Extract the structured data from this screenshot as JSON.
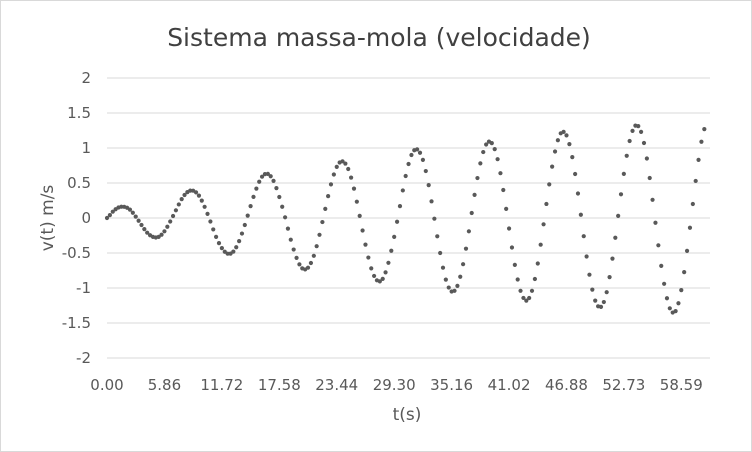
{
  "chart_data": {
    "type": "scatter",
    "title": "Sistema massa-mola (velocidade)",
    "xlabel": "t(s)",
    "ylabel": "v(t)  m/s",
    "ylim": [
      -2,
      2
    ],
    "xlim": [
      0,
      61.52
    ],
    "yticks": [
      "2",
      "1.5",
      "1",
      "0.5",
      "0",
      "-0.5",
      "-1",
      "-1.5",
      "-2"
    ],
    "xticks": [
      "0.00",
      "5.86",
      "11.72",
      "17.58",
      "23.44",
      "29.30",
      "35.16",
      "41.02",
      "46.88",
      "52.73",
      "58.59"
    ],
    "grid": true,
    "legend": "none",
    "marker_color": "#595959",
    "x": [
      0.0,
      0.59,
      1.17,
      1.76,
      2.34,
      2.93,
      3.52,
      4.1,
      4.69,
      5.27,
      5.86,
      6.45,
      7.03,
      7.62,
      8.2,
      8.79,
      9.38,
      9.96,
      10.55,
      11.13,
      11.72,
      12.31,
      12.89,
      13.48,
      14.06,
      14.65,
      15.24,
      15.82,
      16.41,
      16.99,
      17.58,
      18.17,
      18.75,
      19.34,
      19.92,
      20.51,
      21.1,
      21.68,
      22.27,
      22.85,
      23.44,
      24.03,
      24.61,
      25.2,
      25.78,
      26.37,
      26.96,
      27.54,
      28.13,
      28.71,
      29.3,
      29.89,
      30.47,
      31.06,
      31.64,
      32.23,
      32.82,
      33.4,
      33.99,
      34.57,
      35.16,
      35.75,
      36.33,
      36.92,
      37.5,
      38.09,
      38.68,
      39.26,
      39.85,
      40.43,
      41.02,
      41.61,
      42.19,
      42.78,
      43.36,
      43.95,
      44.54,
      45.12,
      45.71,
      46.29,
      46.88,
      47.47,
      48.05,
      48.64,
      49.22,
      49.81,
      50.4,
      50.98,
      51.57,
      52.15,
      52.73,
      53.32,
      53.91,
      54.49,
      55.08,
      55.66,
      56.25,
      56.84,
      57.42,
      58.01,
      58.59,
      59.18,
      59.77,
      60.35,
      60.94
    ],
    "y": [
      0.0,
      0.09,
      0.15,
      0.16,
      0.12,
      0.02,
      -0.1,
      -0.21,
      -0.27,
      -0.27,
      -0.19,
      -0.05,
      0.11,
      0.27,
      0.37,
      0.39,
      0.32,
      0.16,
      -0.05,
      -0.27,
      -0.43,
      -0.51,
      -0.48,
      -0.33,
      -0.1,
      0.17,
      0.42,
      0.59,
      0.63,
      0.53,
      0.3,
      0.01,
      -0.31,
      -0.57,
      -0.72,
      -0.71,
      -0.54,
      -0.24,
      0.13,
      0.48,
      0.73,
      0.81,
      0.7,
      0.42,
      0.03,
      -0.38,
      -0.72,
      -0.89,
      -0.87,
      -0.64,
      -0.27,
      0.17,
      0.6,
      0.9,
      0.98,
      0.83,
      0.47,
      -0.01,
      -0.5,
      -0.88,
      -1.05,
      -0.97,
      -0.66,
      -0.19,
      0.33,
      0.78,
      1.05,
      1.07,
      0.84,
      0.4,
      -0.15,
      -0.67,
      -1.04,
      -1.18,
      -1.04,
      -0.65,
      -0.09,
      0.48,
      0.95,
      1.21,
      1.18,
      0.87,
      0.35,
      -0.26,
      -0.81,
      -1.18,
      -1.27,
      -1.06,
      -0.58,
      0.03,
      0.63,
      1.1,
      1.32,
      1.23,
      0.85,
      0.26,
      -0.39,
      -0.94,
      -1.29,
      -1.33,
      -1.03,
      -0.47,
      0.2,
      0.83,
      1.27
    ]
  }
}
